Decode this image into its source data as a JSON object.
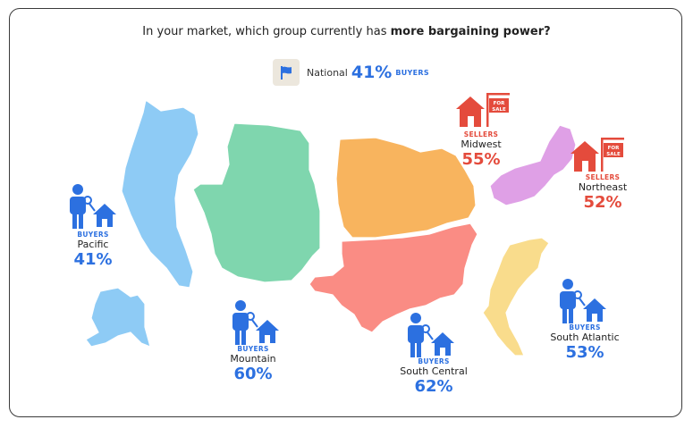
{
  "question": {
    "prefix": "In your market, which group currently has ",
    "bold": "more bargaining power?"
  },
  "national": {
    "label": "National",
    "percent": "41%",
    "side": "BUYERS",
    "icon": "flag-icon"
  },
  "regions": {
    "pacific": {
      "side": "BUYERS",
      "name": "Pacific",
      "percent": "41%",
      "color": "#8ecbf5"
    },
    "mountain": {
      "side": "BUYERS",
      "name": "Mountain",
      "percent": "60%",
      "color": "#7fd6ae"
    },
    "midwest": {
      "side": "SELLERS",
      "name": "Midwest",
      "percent": "55%",
      "color": "#f8b45e"
    },
    "northeast": {
      "side": "SELLERS",
      "name": "Northeast",
      "percent": "52%",
      "color": "#dfa0e6"
    },
    "south_central": {
      "side": "BUYERS",
      "name": "South Central",
      "percent": "62%",
      "color": "#fa8c84"
    },
    "south_atlantic": {
      "side": "BUYERS",
      "name": "South Atlantic",
      "percent": "53%",
      "color": "#f9dc8c"
    }
  },
  "icons": {
    "buyer": "buyer-with-key-and-house-icon",
    "seller": "house-with-for-sale-sign-icon",
    "sale_sign_text": [
      "FOR",
      "SALE"
    ]
  },
  "colors": {
    "buyers": "#2c70e0",
    "sellers": "#e44b3c"
  }
}
